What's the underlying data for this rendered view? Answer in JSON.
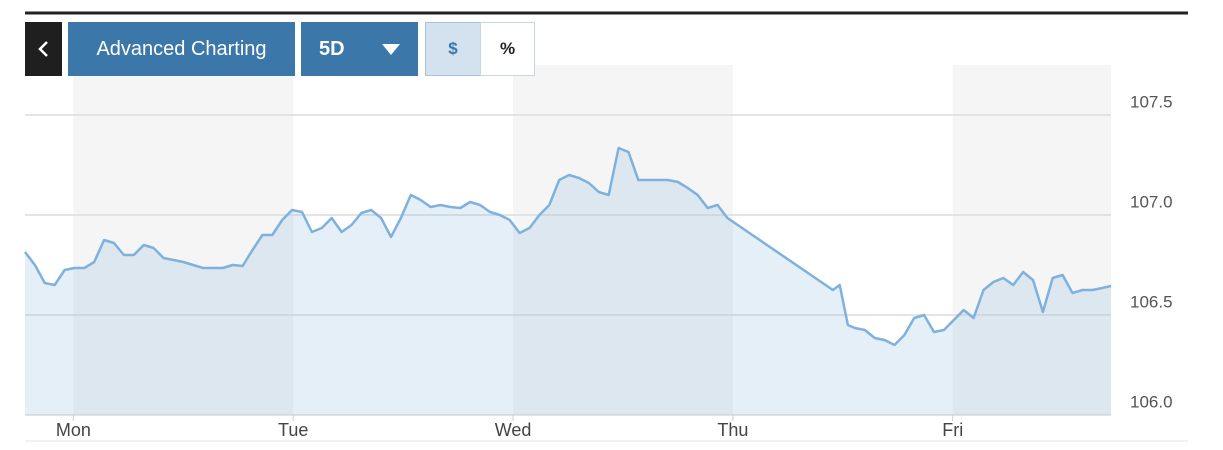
{
  "toolbar": {
    "title": "Advanced Charting",
    "range": "5D",
    "currency": "$",
    "percent": "%"
  },
  "chart_data": {
    "type": "line",
    "color": "#7fb1de",
    "x": [
      -0.22,
      -0.175,
      -0.13,
      -0.085,
      -0.04,
      0.005,
      0.05,
      0.095,
      0.14,
      0.185,
      0.23,
      0.275,
      0.32,
      0.365,
      0.41,
      0.455,
      0.5,
      0.545,
      0.59,
      0.635,
      0.68,
      0.725,
      0.77,
      0.815,
      0.86,
      0.905,
      0.95,
      0.995,
      1.04,
      1.085,
      1.13,
      1.175,
      1.22,
      1.265,
      1.31,
      1.355,
      1.4,
      1.445,
      1.49,
      1.535,
      1.58,
      1.625,
      1.67,
      1.715,
      1.76,
      1.805,
      1.85,
      1.895,
      1.94,
      1.985,
      2.03,
      2.075,
      2.12,
      2.165,
      2.21,
      2.255,
      2.3,
      2.345,
      2.39,
      2.435,
      2.48,
      2.525,
      2.57,
      2.615,
      2.66,
      2.705,
      2.75,
      2.795,
      2.84,
      2.885,
      2.93,
      2.975,
      3.455,
      3.486,
      3.523,
      3.555,
      3.6,
      3.645,
      3.69,
      3.735,
      3.78,
      3.825,
      3.87,
      3.915,
      3.96,
      4.005,
      4.05,
      4.095,
      4.14,
      4.185,
      4.23,
      4.275,
      4.32,
      4.365,
      4.41,
      4.455,
      4.5,
      4.545,
      4.59,
      4.635,
      4.68,
      4.72
    ],
    "values": [
      106.815,
      106.75,
      106.66,
      106.65,
      106.725,
      106.735,
      106.735,
      106.765,
      106.875,
      106.86,
      106.8,
      106.8,
      106.85,
      106.835,
      106.785,
      106.775,
      106.765,
      106.75,
      106.735,
      106.735,
      106.735,
      106.75,
      106.745,
      106.825,
      106.9,
      106.9,
      106.975,
      107.025,
      107.015,
      106.915,
      106.935,
      106.985,
      106.915,
      106.95,
      107.01,
      107.025,
      106.985,
      106.89,
      106.985,
      107.1,
      107.075,
      107.04,
      107.05,
      107.04,
      107.035,
      107.065,
      107.05,
      107.015,
      107.0,
      106.975,
      106.91,
      106.935,
      107.0,
      107.05,
      107.175,
      107.2,
      107.185,
      107.16,
      107.115,
      107.1,
      107.335,
      107.315,
      107.175,
      107.175,
      107.175,
      107.175,
      107.165,
      107.135,
      107.1,
      107.035,
      107.05,
      106.985,
      106.625,
      106.65,
      106.45,
      106.435,
      106.425,
      106.385,
      106.375,
      106.35,
      106.4,
      106.485,
      106.5,
      106.415,
      106.425,
      106.475,
      106.525,
      106.485,
      106.625,
      106.665,
      106.685,
      106.65,
      106.715,
      106.675,
      106.515,
      106.685,
      106.7,
      106.61,
      106.625,
      106.625,
      106.635,
      106.645
    ],
    "xlim": [
      -0.22,
      4.72
    ],
    "xticks": [
      {
        "value": 0,
        "label": "Mon"
      },
      {
        "value": 1,
        "label": "Tue"
      },
      {
        "value": 2,
        "label": "Wed"
      },
      {
        "value": 3,
        "label": "Thu"
      },
      {
        "value": 4,
        "label": "Fri"
      }
    ],
    "ylim": [
      106,
      107.65
    ],
    "yticks": [
      {
        "value": 106,
        "label": "106.0"
      },
      106.5,
      {
        "value": 107,
        "label": "107.0"
      },
      107.5
    ],
    "grid": true
  }
}
